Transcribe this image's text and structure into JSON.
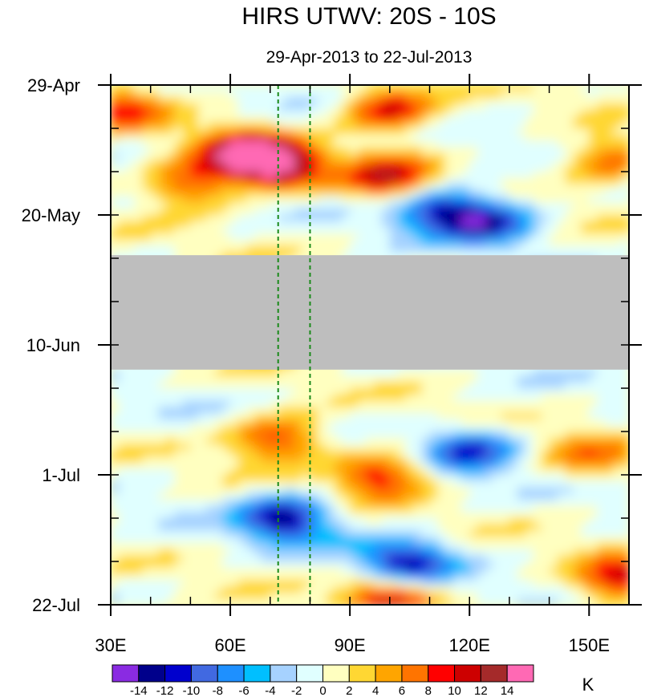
{
  "chart_data": {
    "type": "heatmap",
    "title": "HIRS UTWV: 20S - 10S",
    "subtitle": "29-Apr-2013 to 22-Jul-2013",
    "x_axis": {
      "range": [
        30,
        160
      ],
      "ticks": [
        {
          "value": 30,
          "label": "30E"
        },
        {
          "value": 60,
          "label": "60E"
        },
        {
          "value": 90,
          "label": "90E"
        },
        {
          "value": 120,
          "label": "120E"
        },
        {
          "value": 150,
          "label": "150E"
        }
      ],
      "minor_step": 10
    },
    "y_axis": {
      "range_days": [
        0,
        84
      ],
      "ticks": [
        {
          "day": 0,
          "label": "29-Apr"
        },
        {
          "day": 21,
          "label": "20-May"
        },
        {
          "day": 42,
          "label": "10-Jun"
        },
        {
          "day": 63,
          "label": "1-Jul"
        },
        {
          "day": 84,
          "label": "22-Jul"
        }
      ],
      "minor_step_days": 7
    },
    "missing_data_band_days": [
      27.5,
      46
    ],
    "reference_lines_lon": [
      72,
      80
    ],
    "colorbar": {
      "unit": "K",
      "levels": [
        -14,
        -12,
        -10,
        -8,
        -6,
        -4,
        -2,
        0,
        2,
        4,
        6,
        8,
        10,
        12,
        14
      ],
      "level_labels": [
        "-14",
        "-12",
        "-10",
        "-8",
        "-6",
        "-4",
        "-2",
        "0",
        "2",
        "4",
        "6",
        "8",
        "10",
        "12",
        "14"
      ],
      "colors": [
        "#8a2be2",
        "#00008b",
        "#0000cd",
        "#4169e1",
        "#1e90ff",
        "#00bfff",
        "#a6d2ff",
        "#e0ffff",
        "#ffffc0",
        "#ffd733",
        "#ffa500",
        "#ff7400",
        "#ff0000",
        "#cd0000",
        "#a52a2a",
        "#ff69b4"
      ]
    },
    "features": [
      {
        "lon": 72,
        "day": 13,
        "value": 15
      },
      {
        "lon": 62,
        "day": 11,
        "value": 11
      },
      {
        "lon": 50,
        "day": 16,
        "value": 9
      },
      {
        "lon": 100,
        "day": 4,
        "value": 11
      },
      {
        "lon": 100,
        "day": 15,
        "value": 11
      },
      {
        "lon": 33,
        "day": 4,
        "value": 8
      },
      {
        "lon": 155,
        "day": 12,
        "value": 8
      },
      {
        "lon": 112,
        "day": 20,
        "value": -11
      },
      {
        "lon": 125,
        "day": 22,
        "value": -11
      },
      {
        "lon": 72,
        "day": 57,
        "value": 10
      },
      {
        "lon": 98,
        "day": 63,
        "value": 10
      },
      {
        "lon": 120,
        "day": 59,
        "value": -10
      },
      {
        "lon": 104,
        "day": 77,
        "value": -12
      },
      {
        "lon": 74,
        "day": 70,
        "value": -13
      },
      {
        "lon": 100,
        "day": 83,
        "value": 11
      },
      {
        "lon": 158,
        "day": 80,
        "value": 11
      },
      {
        "lon": 150,
        "day": 60,
        "value": 6
      }
    ]
  }
}
